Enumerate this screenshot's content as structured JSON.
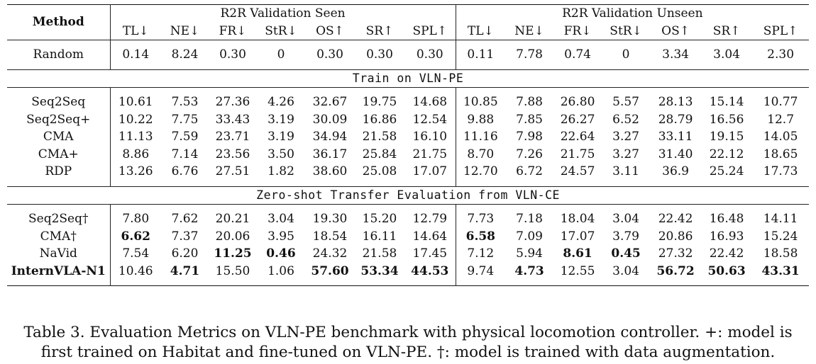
{
  "table": {
    "method_header": "Method",
    "group_seen": "R2R Validation Seen",
    "group_unseen": "R2R Validation Unseen",
    "metrics": [
      "TL↓",
      "NE↓",
      "FR↓",
      "StR↓",
      "OS↑",
      "SR↑",
      "SPL↑"
    ],
    "sections": [
      {
        "title": "",
        "rows": [
          {
            "method": "Random",
            "bold_method": false,
            "values": [
              "0.14",
              "8.24",
              "0.30",
              "0",
              "0.30",
              "0.30",
              "0.30",
              "0.11",
              "7.78",
              "0.74",
              "0",
              "3.34",
              "3.04",
              "2.30"
            ],
            "bold": []
          }
        ]
      },
      {
        "title": "Train on VLN-PE",
        "rows": [
          {
            "method": "Seq2Seq",
            "bold_method": false,
            "values": [
              "10.61",
              "7.53",
              "27.36",
              "4.26",
              "32.67",
              "19.75",
              "14.68",
              "10.85",
              "7.88",
              "26.80",
              "5.57",
              "28.13",
              "15.14",
              "10.77"
            ],
            "bold": []
          },
          {
            "method": "Seq2Seq+",
            "bold_method": false,
            "values": [
              "10.22",
              "7.75",
              "33.43",
              "3.19",
              "30.09",
              "16.86",
              "12.54",
              "9.88",
              "7.85",
              "26.27",
              "6.52",
              "28.79",
              "16.56",
              "12.7"
            ],
            "bold": []
          },
          {
            "method": "CMA",
            "bold_method": false,
            "values": [
              "11.13",
              "7.59",
              "23.71",
              "3.19",
              "34.94",
              "21.58",
              "16.10",
              "11.16",
              "7.98",
              "22.64",
              "3.27",
              "33.11",
              "19.15",
              "14.05"
            ],
            "bold": []
          },
          {
            "method": "CMA+",
            "bold_method": false,
            "values": [
              "8.86",
              "7.14",
              "23.56",
              "3.50",
              "36.17",
              "25.84",
              "21.75",
              "8.70",
              "7.26",
              "21.75",
              "3.27",
              "31.40",
              "22.12",
              "18.65"
            ],
            "bold": []
          },
          {
            "method": "RDP",
            "bold_method": false,
            "values": [
              "13.26",
              "6.76",
              "27.51",
              "1.82",
              "38.60",
              "25.08",
              "17.07",
              "12.70",
              "6.72",
              "24.57",
              "3.11",
              "36.9",
              "25.24",
              "17.73"
            ],
            "bold": []
          }
        ]
      },
      {
        "title": "Zero-shot Transfer Evaluation from VLN-CE",
        "rows": [
          {
            "method": "Seq2Seq†",
            "bold_method": false,
            "values": [
              "7.80",
              "7.62",
              "20.21",
              "3.04",
              "19.30",
              "15.20",
              "12.79",
              "7.73",
              "7.18",
              "18.04",
              "3.04",
              "22.42",
              "16.48",
              "14.11"
            ],
            "bold": []
          },
          {
            "method": "CMA†",
            "bold_method": false,
            "values": [
              "6.62",
              "7.37",
              "20.06",
              "3.95",
              "18.54",
              "16.11",
              "14.64",
              "6.58",
              "7.09",
              "17.07",
              "3.79",
              "20.86",
              "16.93",
              "15.24"
            ],
            "bold": [
              0,
              7
            ]
          },
          {
            "method": "NaVid",
            "bold_method": false,
            "values": [
              "7.54",
              "6.20",
              "11.25",
              "0.46",
              "24.32",
              "21.58",
              "17.45",
              "7.12",
              "5.94",
              "8.61",
              "0.45",
              "27.32",
              "22.42",
              "18.58"
            ],
            "bold": [
              2,
              3,
              9,
              10
            ]
          },
          {
            "method": "InternVLA-N1",
            "bold_method": true,
            "values": [
              "10.46",
              "4.71",
              "15.50",
              "1.06",
              "57.60",
              "53.34",
              "44.53",
              "9.74",
              "4.73",
              "12.55",
              "3.04",
              "56.72",
              "50.63",
              "43.31"
            ],
            "bold": [
              1,
              4,
              5,
              6,
              8,
              11,
              12,
              13
            ]
          }
        ]
      }
    ]
  },
  "caption": {
    "line1": "Table 3. Evaluation Metrics on VLN-PE benchmark with physical locomotion controller. +: model is",
    "line2": "first trained on Habitat and fine-tuned on VLN-PE. †: model is trained with data augmentation."
  }
}
